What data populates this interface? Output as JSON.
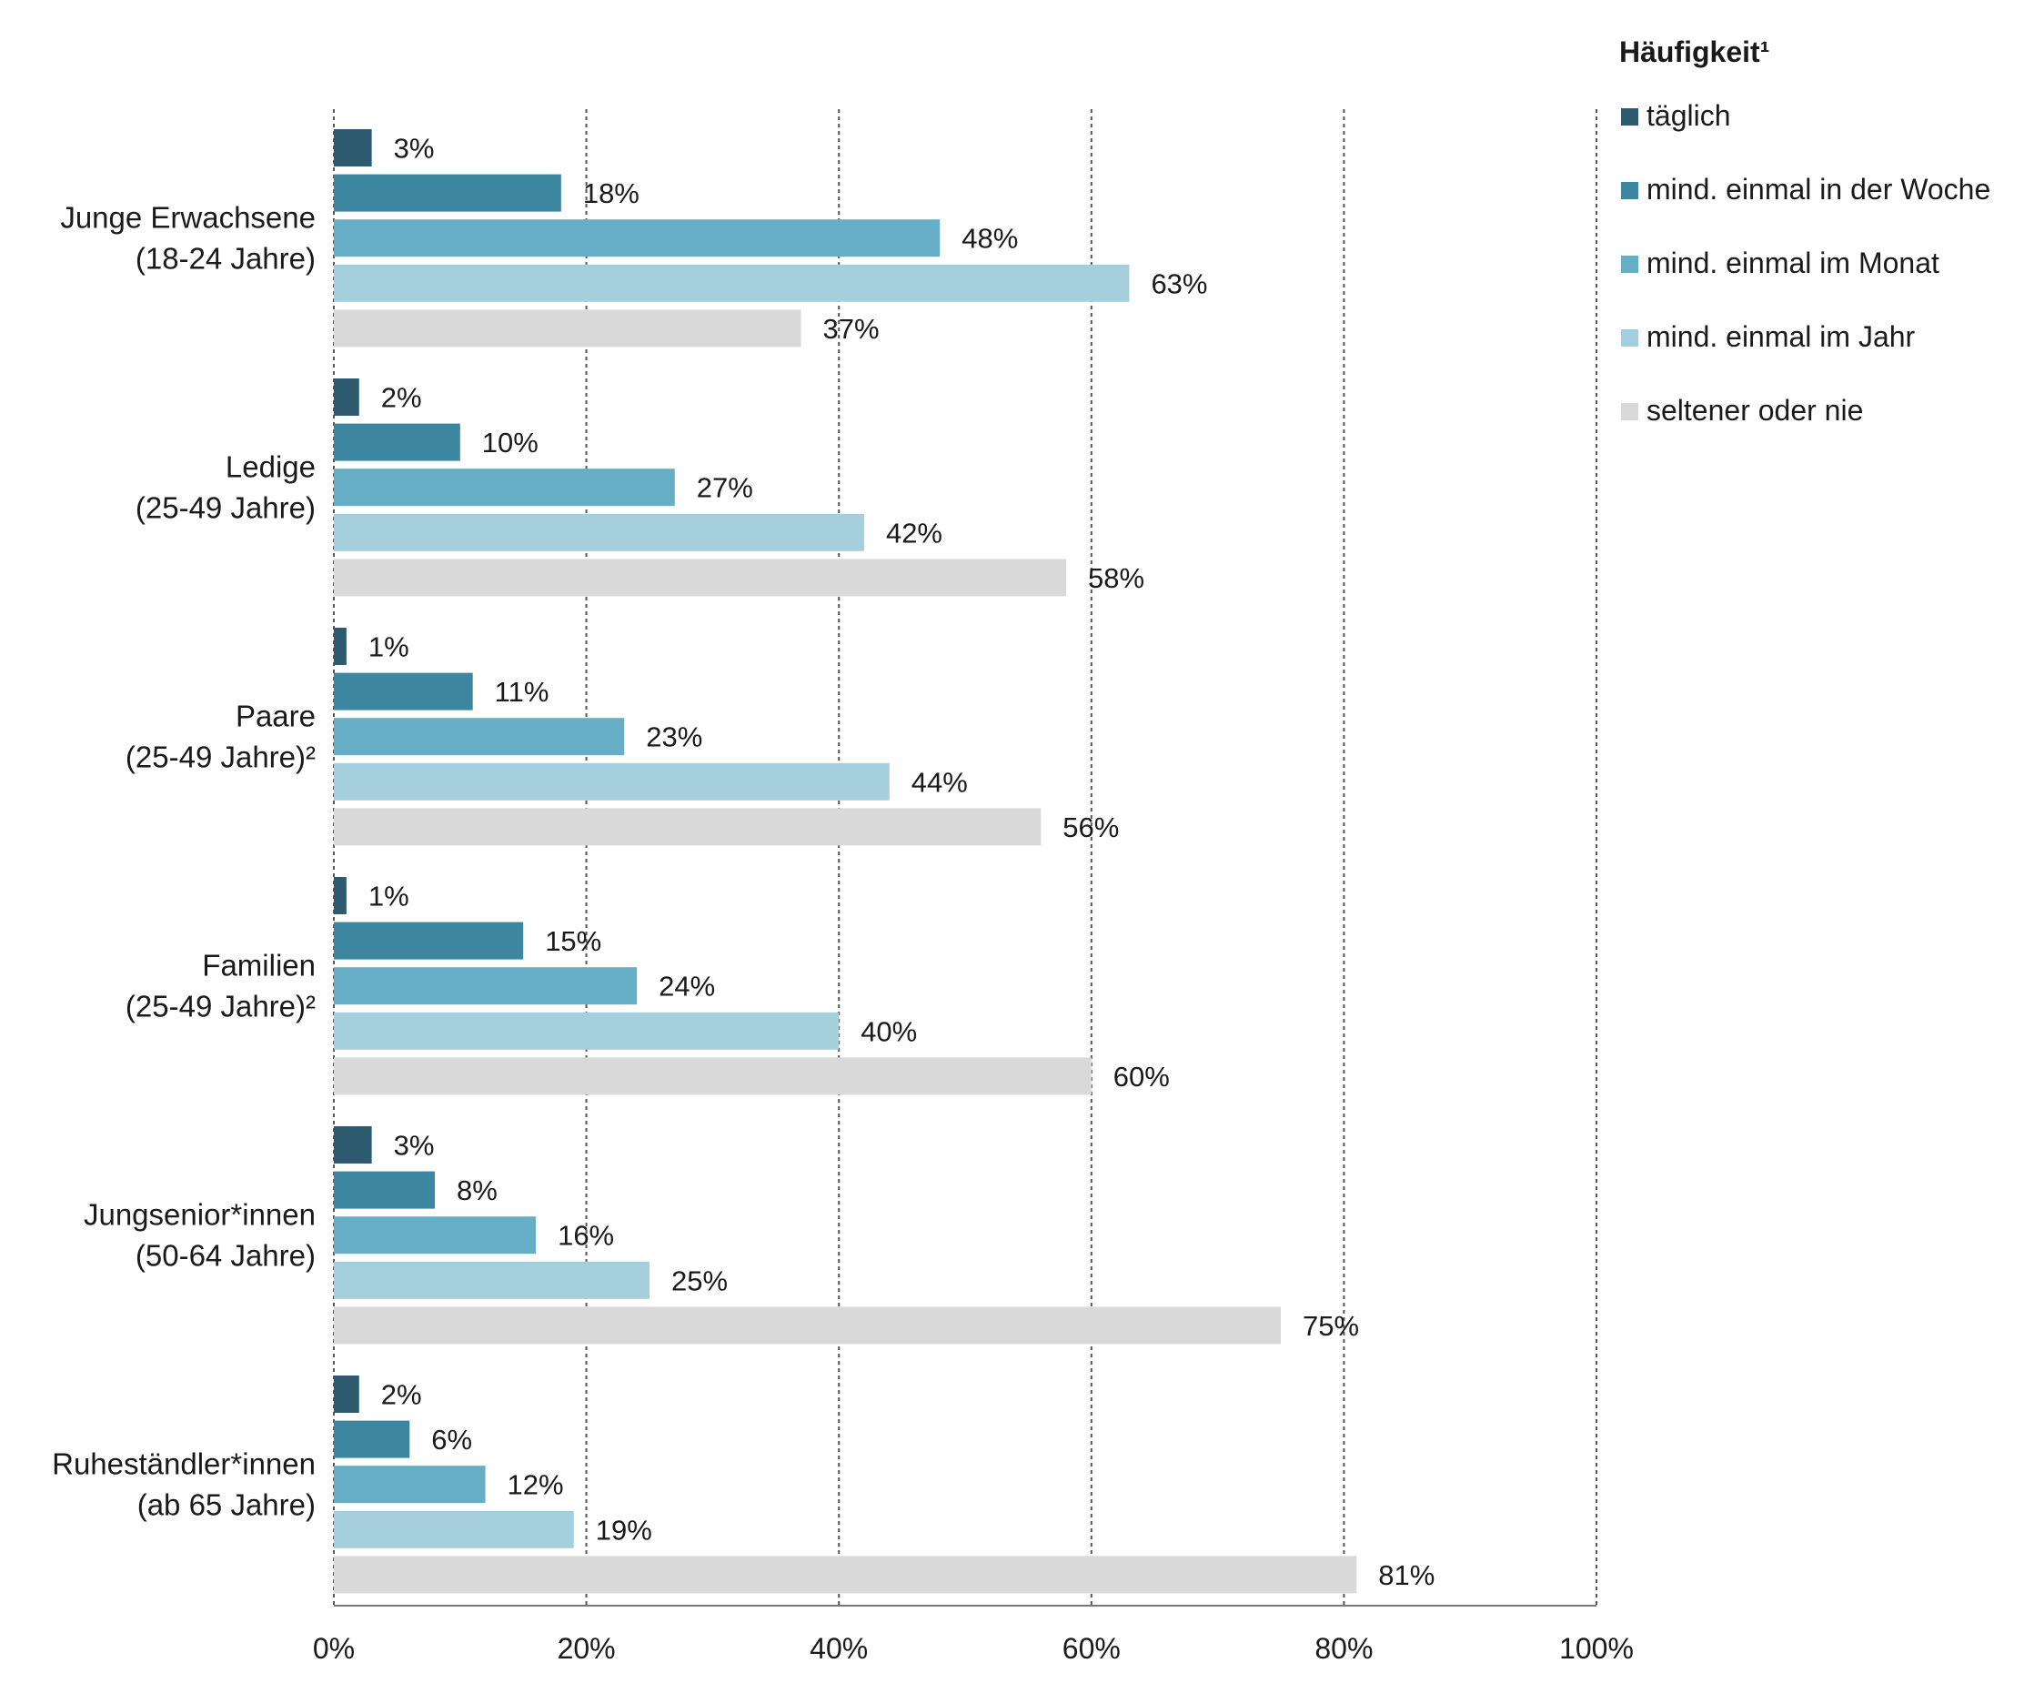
{
  "chart_data": {
    "type": "bar",
    "orientation": "horizontal",
    "title": "",
    "xlabel": "",
    "ylabel": "",
    "xlim": [
      0,
      100
    ],
    "grid": true,
    "legend_position": "top-right",
    "legend_title": "Häufigkeit¹",
    "x_ticks": [
      "0%",
      "20%",
      "40%",
      "60%",
      "80%",
      "100%"
    ],
    "categories": [
      [
        "Junge Erwachsene",
        "(18-24 Jahre)"
      ],
      [
        "Ledige",
        "(25-49 Jahre)"
      ],
      [
        "Paare",
        "(25-49 Jahre)²"
      ],
      [
        "Familien",
        "(25-49 Jahre)²"
      ],
      [
        "Jungsenior*innen",
        "(50-64 Jahre)"
      ],
      [
        "Ruheständler*innen",
        "(ab 65 Jahre)"
      ]
    ],
    "series": [
      {
        "name": "täglich",
        "color": "#2d5a6e",
        "values": [
          3,
          2,
          1,
          1,
          3,
          2
        ]
      },
      {
        "name": "mind. einmal in der Woche",
        "color": "#3d86a0",
        "values": [
          18,
          10,
          11,
          15,
          8,
          6
        ]
      },
      {
        "name": "mind. einmal im Monat",
        "color": "#66aec6",
        "values": [
          48,
          27,
          23,
          24,
          16,
          12
        ]
      },
      {
        "name": "mind. einmal im Jahr",
        "color": "#a6cfdd",
        "values": [
          63,
          42,
          44,
          40,
          25,
          19
        ]
      },
      {
        "name": "seltener oder nie",
        "color": "#d9d9d9",
        "values": [
          37,
          58,
          56,
          60,
          75,
          81
        ]
      }
    ],
    "value_suffix": "%"
  }
}
